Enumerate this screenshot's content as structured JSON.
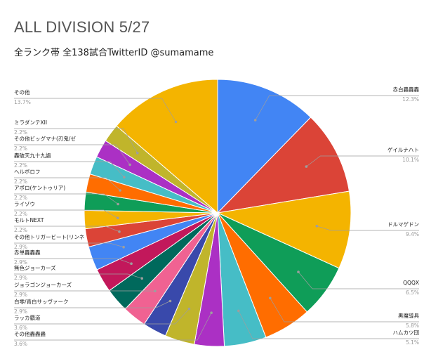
{
  "title": "ALL DIVISION 5/27",
  "subtitle": "全ランク帯 全138試合TwitterID @sumamame",
  "chart_data": {
    "type": "pie",
    "title": "ALL DIVISION 5/27",
    "subtitle": "全ランク帯 全138試合TwitterID @sumamame",
    "legend": "labels-around",
    "slices": [
      {
        "name": "赤白轟轟轟",
        "pct_label": "12.3%",
        "value": 12.3,
        "color": "#4285f4"
      },
      {
        "name": "ゲイルナハト",
        "pct_label": "10.1%",
        "value": 10.1,
        "color": "#db4437"
      },
      {
        "name": "ドルマゲドン",
        "pct_label": "9.4%",
        "value": 9.4,
        "color": "#f4b400"
      },
      {
        "name": "QQQX",
        "pct_label": "6.5%",
        "value": 6.5,
        "color": "#0f9d58"
      },
      {
        "name": "黒魔導具",
        "pct_label": "5.8%",
        "value": 5.8,
        "color": "#ff6d00"
      },
      {
        "name": "ハムカツ団",
        "pct_label": "5.1%",
        "value": 5.1,
        "color": "#46bdc6"
      },
      {
        "name": "その他轟轟轟",
        "pct_label": "3.6%",
        "value": 3.6,
        "color": "#ab30c4"
      },
      {
        "name": "ラッカ覇道",
        "pct_label": "3.6%",
        "value": 3.6,
        "color": "#c0b52b"
      },
      {
        "name": "白零/青白サッヴァーク",
        "pct_label": "2.9%",
        "value": 2.9,
        "color": "#3949ab"
      },
      {
        "name": "ジョラゴンジョーカーズ",
        "pct_label": "2.9%",
        "value": 2.9,
        "color": "#f06292"
      },
      {
        "name": "無色ジョーカーズ",
        "pct_label": "2.9%",
        "value": 2.9,
        "color": "#00695c"
      },
      {
        "name": "赤単轟轟轟",
        "pct_label": "2.9%",
        "value": 2.9,
        "color": "#c2185b"
      },
      {
        "name": "その他トリガービート(リンネ",
        "pct_label": "2.9%",
        "value": 2.9,
        "color": "#4285f4"
      },
      {
        "name": "モルトNEXT",
        "pct_label": "2.2%",
        "value": 2.2,
        "color": "#db4437"
      },
      {
        "name": "ライゾウ",
        "pct_label": "2.2%",
        "value": 2.2,
        "color": "#f4b400"
      },
      {
        "name": "アポロ(ケントゥリア)",
        "pct_label": "2.2%",
        "value": 2.2,
        "color": "#0f9d58"
      },
      {
        "name": "ヘルボロフ",
        "pct_label": "2.2%",
        "value": 2.2,
        "color": "#ff6d00"
      },
      {
        "name": "轟破天九十九語",
        "pct_label": "2.2%",
        "value": 2.2,
        "color": "#46bdc6"
      },
      {
        "name": "その他ビッグマナ(刃鬼/ゼ",
        "pct_label": "2.2%",
        "value": 2.2,
        "color": "#ab30c4"
      },
      {
        "name": "ミラダンテXII",
        "pct_label": "2.2%",
        "value": 2.2,
        "color": "#c0b52b"
      },
      {
        "name": "その他",
        "pct_label": "13.7%",
        "value": 13.7,
        "color": "#f4b400"
      }
    ]
  }
}
